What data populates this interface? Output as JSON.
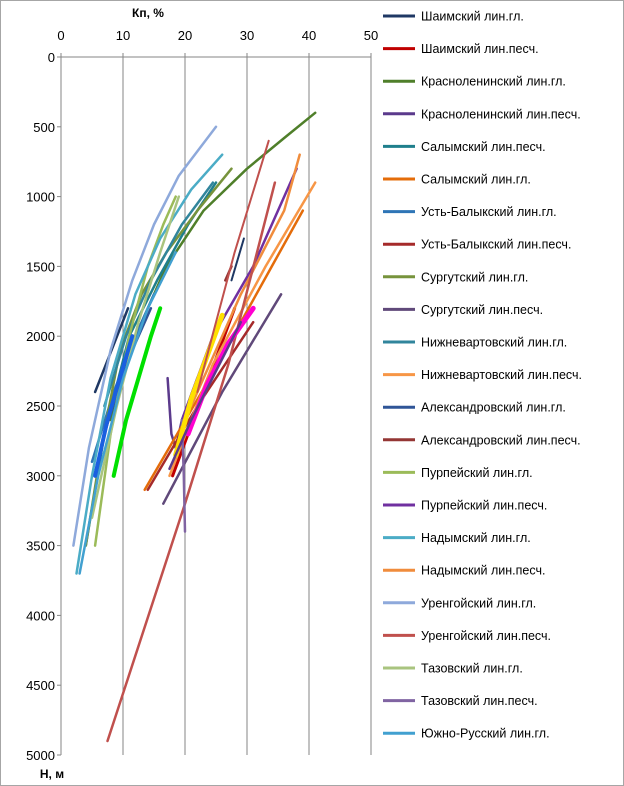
{
  "chart_data": {
    "type": "line",
    "title": "",
    "xlabel": "Кп, %",
    "ylabel": "H, м",
    "xlim": [
      0,
      50
    ],
    "ylim": [
      0,
      5000
    ],
    "y_inverted": true,
    "x_axis_position": "top",
    "x_ticks": [
      "0",
      "10",
      "20",
      "30",
      "40",
      "50"
    ],
    "y_ticks": [
      "0",
      "500",
      "1000",
      "1500",
      "2000",
      "2500",
      "3000",
      "3500",
      "4000",
      "4500",
      "5000"
    ],
    "grid": {
      "vertical": true,
      "horizontal": false
    },
    "legend_position": "right",
    "series": [
      {
        "name": "Шаимский лин.гл.",
        "color": "#1F3864",
        "width": 2.5,
        "points": [
          [
            5.5,
            2400
          ],
          [
            10.8,
            1800
          ]
        ]
      },
      {
        "name": "Шаимский лин.песч.",
        "color": "#C00000",
        "width": 3,
        "points": [
          [
            18,
            3000
          ],
          [
            28,
            1800
          ]
        ]
      },
      {
        "name": "Красноленинский лин.гл.",
        "color": "#4F7F2A",
        "width": 2.5,
        "points": [
          [
            8,
            2600
          ],
          [
            12,
            2000
          ],
          [
            17,
            1500
          ],
          [
            23,
            1100
          ],
          [
            30,
            800
          ],
          [
            36,
            580
          ],
          [
            41,
            400
          ]
        ]
      },
      {
        "name": "Красноленинский лин.песч.",
        "color": "#5B3A8C",
        "width": 2.5,
        "points": [
          [
            17.2,
            2300
          ],
          [
            17.8,
            2700
          ],
          [
            18.5,
            2800
          ],
          [
            19.5,
            2600
          ],
          [
            22,
            2300
          ]
        ]
      },
      {
        "name": "Салымский лин.песч.",
        "color": "#1F7F8C",
        "width": 2.5,
        "points": [
          [
            4,
            3500
          ],
          [
            7,
            2700
          ],
          [
            11,
            2000
          ],
          [
            15.5,
            1600
          ],
          [
            20.5,
            1200
          ],
          [
            25,
            900
          ]
        ]
      },
      {
        "name": "Салымский лин.гл.",
        "color": "#E46C0A",
        "width": 2.5,
        "points": [
          [
            13.5,
            3100
          ],
          [
            24,
            2300
          ],
          [
            34,
            1500
          ],
          [
            39,
            1100
          ]
        ]
      },
      {
        "name": "Усть-Балыкский лин.гл.",
        "color": "#2E75B6",
        "width": 2.5,
        "points": [
          [
            5,
            2900
          ],
          [
            8.5,
            2400
          ],
          [
            12,
            2000
          ],
          [
            15,
            1700
          ]
        ]
      },
      {
        "name": "Усть-Балыкский лин.песч.",
        "color": "#A52A2A",
        "width": 2.5,
        "points": [
          [
            14,
            3100
          ],
          [
            22,
            2500
          ],
          [
            31,
            1900
          ]
        ]
      },
      {
        "name": "Сургутский лин.гл.",
        "color": "#77933C",
        "width": 2.5,
        "points": [
          [
            4,
            3500
          ],
          [
            6.5,
            2800
          ],
          [
            9.5,
            2100
          ],
          [
            13,
            1700
          ],
          [
            17,
            1400
          ],
          [
            22,
            1100
          ],
          [
            27.5,
            800
          ]
        ]
      },
      {
        "name": "Сургутский лин.песч.",
        "color": "#60497A",
        "width": 2.5,
        "points": [
          [
            16.5,
            3200
          ],
          [
            26,
            2400
          ],
          [
            35.5,
            1700
          ]
        ]
      },
      {
        "name": "Нижневартовский лин.гл.",
        "color": "#31859C",
        "width": 2.5,
        "points": [
          [
            7,
            2500
          ],
          [
            10.5,
            2000
          ],
          [
            14.5,
            1600
          ],
          [
            19.5,
            1200
          ],
          [
            24.5,
            900
          ]
        ]
      },
      {
        "name": "Нижневартовский лин.песч.",
        "color": "#F79646",
        "width": 2.5,
        "points": [
          [
            17.5,
            3000
          ],
          [
            24.5,
            2200
          ],
          [
            33,
            1500
          ],
          [
            41,
            900
          ]
        ]
      },
      {
        "name": "Александровский лин.гл.",
        "color": "#2F5597",
        "width": 2.5,
        "points": [
          [
            7,
            2700
          ],
          [
            10.5,
            2200
          ],
          [
            14.5,
            1800
          ]
        ]
      },
      {
        "name": "Александровский лин.песч.",
        "color": "#943634",
        "width": 2.5,
        "points": [
          [
            26.5,
            1600
          ],
          [
            27.5,
            1500
          ]
        ]
      },
      {
        "name": "Пурпейский лин.гл.",
        "color": "#9BBB59",
        "width": 2.5,
        "points": [
          [
            5.5,
            3500
          ],
          [
            8,
            2700
          ],
          [
            11,
            2000
          ],
          [
            14,
            1500
          ],
          [
            16.5,
            1200
          ],
          [
            18.5,
            1000
          ]
        ]
      },
      {
        "name": "Пурпейский лин.песч.",
        "color": "#7030A0",
        "width": 2.5,
        "points": [
          [
            19.5,
            2600
          ],
          [
            24.5,
            2000
          ],
          [
            31,
            1500
          ],
          [
            38,
            800
          ]
        ]
      },
      {
        "name": "Надымский лин.гл.",
        "color": "#4BACC6",
        "width": 2.5,
        "points": [
          [
            2.5,
            3700
          ],
          [
            5,
            3000
          ],
          [
            8,
            2300
          ],
          [
            12,
            1700
          ],
          [
            16,
            1300
          ],
          [
            21,
            950
          ],
          [
            26,
            700
          ]
        ]
      },
      {
        "name": "Надымский лин.песч.",
        "color": "#F08C3C",
        "width": 2.5,
        "points": [
          [
            21,
            2500
          ],
          [
            29,
            1700
          ],
          [
            36,
            1100
          ],
          [
            38.5,
            700
          ]
        ]
      },
      {
        "name": "Уренгойский лин.гл.",
        "color": "#8EA9DB",
        "width": 2.5,
        "points": [
          [
            2,
            3500
          ],
          [
            4.5,
            2800
          ],
          [
            8,
            2100
          ],
          [
            11.5,
            1600
          ],
          [
            15,
            1200
          ],
          [
            19,
            850
          ],
          [
            25,
            500
          ]
        ]
      },
      {
        "name": "Уренгойский лин.песч.",
        "color": "#C0504D",
        "width": 2.5,
        "points": [
          [
            7.5,
            4900
          ],
          [
            20,
            3200
          ],
          [
            27,
            2200
          ],
          [
            34.5,
            900
          ]
        ]
      },
      {
        "name": "Тазовский лин.гл.",
        "color": "#A9C47F",
        "width": 2.5,
        "points": [
          [
            5,
            3300
          ],
          [
            9,
            2500
          ],
          [
            12.5,
            1900
          ],
          [
            16,
            1400
          ],
          [
            19,
            1000
          ]
        ]
      },
      {
        "name": "Тазовский лин.песч.",
        "color": "#8064A2",
        "width": 2.5,
        "points": [
          [
            19.5,
            2600
          ],
          [
            19.8,
            3000
          ],
          [
            20,
            3400
          ]
        ]
      },
      {
        "name": "Южно-Русский лин.гл.",
        "color": "#41A0D0",
        "width": 2.5,
        "points": [
          [
            3,
            3700
          ],
          [
            6,
            3000
          ],
          [
            10,
            2300
          ],
          [
            14,
            1800
          ],
          [
            18.5,
            1400
          ]
        ]
      }
    ],
    "extra_lines": [
      {
        "color": "#00E000",
        "width": 4,
        "points": [
          [
            8.5,
            3000
          ],
          [
            10.5,
            2600
          ],
          [
            12.5,
            2300
          ],
          [
            14.5,
            2000
          ],
          [
            16,
            1800
          ]
        ]
      },
      {
        "color": "#1A5FE0",
        "width": 4,
        "points": [
          [
            5.5,
            3000
          ],
          [
            7.5,
            2600
          ],
          [
            9.5,
            2300
          ],
          [
            11.5,
            2000
          ]
        ]
      },
      {
        "color": "#FFE000",
        "width": 5,
        "points": [
          [
            18.5,
            2850
          ],
          [
            21,
            2450
          ],
          [
            23.5,
            2150
          ],
          [
            26,
            1850
          ]
        ]
      },
      {
        "color": "#FF00D0",
        "width": 5,
        "points": [
          [
            20.5,
            2700
          ],
          [
            23.5,
            2350
          ],
          [
            27,
            2050
          ],
          [
            31,
            1800
          ]
        ]
      },
      {
        "color": "#1F3864",
        "width": 2,
        "points": [
          [
            27.5,
            1600
          ],
          [
            29.5,
            1300
          ]
        ]
      },
      {
        "color": "#5B3A8C",
        "width": 2.5,
        "points": [
          [
            17.5,
            2950
          ],
          [
            21,
            2600
          ],
          [
            25,
            2250
          ],
          [
            29,
            1900
          ]
        ]
      },
      {
        "color": "#C0504D",
        "width": 2,
        "points": [
          [
            22,
            2400
          ],
          [
            28,
            1400
          ],
          [
            33.5,
            600
          ]
        ]
      }
    ]
  }
}
